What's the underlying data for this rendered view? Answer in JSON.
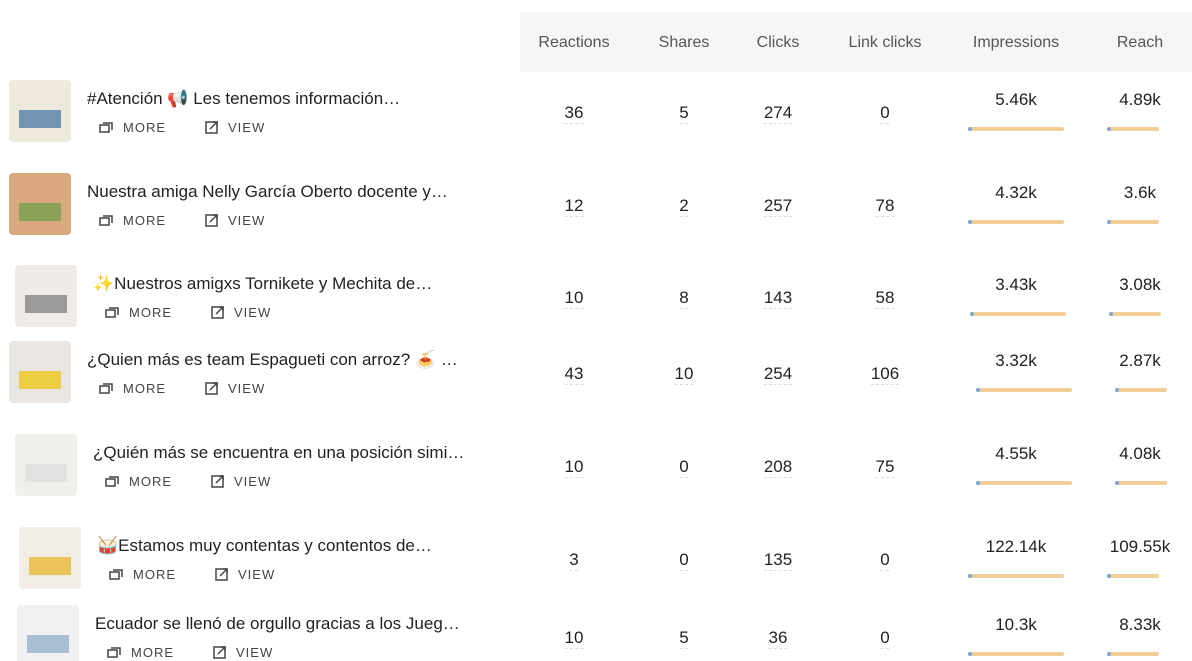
{
  "table": {
    "columns": [
      "Reactions",
      "Shares",
      "Clicks",
      "Link clicks",
      "Impressions",
      "Reach"
    ],
    "rows": [
      {
        "title": "#Atención 📢 Les tenemos información…",
        "more": "MORE",
        "view": "VIEW",
        "cells": [
          "36",
          "5",
          "274",
          "0",
          "5.46k",
          "4.89k"
        ]
      },
      {
        "title": "Nuestra amiga Nelly García Oberto docente y…",
        "more": "MORE",
        "view": "VIEW",
        "cells": [
          "12",
          "2",
          "257",
          "78",
          "4.32k",
          "3.6k"
        ]
      },
      {
        "title": "✨Nuestros amigxs Tornikete y Mechita de…",
        "more": "MORE",
        "view": "VIEW",
        "cells": [
          "10",
          "8",
          "143",
          "58",
          "3.43k",
          "3.08k"
        ]
      },
      {
        "title": "¿Quien más es team Espagueti con arroz? 🍝 …",
        "more": "MORE",
        "view": "VIEW",
        "cells": [
          "43",
          "10",
          "254",
          "106",
          "3.32k",
          "2.87k"
        ]
      },
      {
        "title": "¿Quién más se encuentra en una posición simi…",
        "more": "MORE",
        "view": "VIEW",
        "cells": [
          "10",
          "0",
          "208",
          "75",
          "4.55k",
          "4.08k"
        ]
      },
      {
        "title": "🥁Estamos muy contentas y contentos de…",
        "more": "MORE",
        "view": "VIEW",
        "cells": [
          "3",
          "0",
          "135",
          "0",
          "122.14k",
          "109.55k"
        ]
      },
      {
        "title": "Ecuador se llenó de orgullo gracias a los Jueg…",
        "more": "MORE",
        "view": "VIEW",
        "cells": [
          "10",
          "5",
          "36",
          "0",
          "10.3k",
          "8.33k"
        ]
      }
    ]
  }
}
